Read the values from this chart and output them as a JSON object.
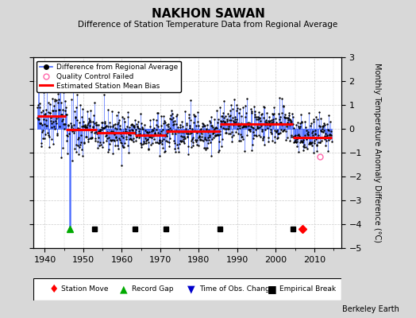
{
  "title": "NAKHON SAWAN",
  "subtitle": "Difference of Station Temperature Data from Regional Average",
  "ylabel_right": "Monthly Temperature Anomaly Difference (°C)",
  "credit": "Berkeley Earth",
  "xlim": [
    1937,
    2017
  ],
  "ylim": [
    -5,
    3
  ],
  "yticks": [
    -5,
    -4,
    -3,
    -2,
    -1,
    0,
    1,
    2,
    3
  ],
  "xticks": [
    1940,
    1950,
    1960,
    1970,
    1980,
    1990,
    2000,
    2010
  ],
  "bg_color": "#d8d8d8",
  "plot_bg_color": "#ffffff",
  "grid_color": "#cccccc",
  "line_color": "#4466ff",
  "dot_color": "#000000",
  "bias_color": "#ff0000",
  "seed": 42,
  "segments": [
    {
      "start": 1938.0,
      "end": 1945.5,
      "bias": 0.55
    },
    {
      "start": 1945.5,
      "end": 1953.5,
      "bias": -0.04
    },
    {
      "start": 1953.5,
      "end": 1963.5,
      "bias": -0.18
    },
    {
      "start": 1963.5,
      "end": 1971.5,
      "bias": -0.25
    },
    {
      "start": 1971.5,
      "end": 1985.5,
      "bias": -0.1
    },
    {
      "start": 1985.5,
      "end": 2004.5,
      "bias": 0.2
    },
    {
      "start": 2004.5,
      "end": 2014.5,
      "bias": -0.35
    }
  ],
  "event_markers": {
    "station_move": [
      2007.0
    ],
    "record_gap": [
      1946.5
    ],
    "obs_change": [],
    "empirical_break": [
      1953.0,
      1963.5,
      1971.5,
      1985.5,
      2004.5
    ]
  },
  "special_spike": {
    "year": 1946.5,
    "value": -4.2
  },
  "qc_failed": [
    {
      "year": 2011.5,
      "value": -1.15
    }
  ],
  "marker_y": -4.2,
  "noise_std": 0.42,
  "early_mult": 1.6
}
